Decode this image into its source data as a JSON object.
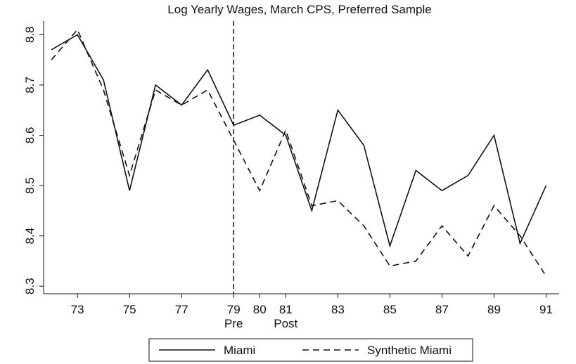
{
  "chart_data": {
    "type": "line",
    "title": "Log Yearly Wages, March CPS, Preferred Sample",
    "x": [
      72,
      73,
      74,
      75,
      76,
      77,
      78,
      79,
      80,
      81,
      82,
      83,
      84,
      85,
      86,
      87,
      88,
      89,
      90,
      91
    ],
    "series": [
      {
        "name": "Miami",
        "color": "#111111",
        "dash": "solid",
        "values": [
          8.77,
          8.8,
          8.71,
          8.49,
          8.7,
          8.66,
          8.73,
          8.62,
          8.64,
          8.6,
          8.45,
          8.65,
          8.58,
          8.38,
          8.53,
          8.49,
          8.52,
          8.6,
          8.385,
          8.5
        ]
      },
      {
        "name": "Synthetic Miami",
        "color": "#111111",
        "dash": "dashed",
        "values": [
          8.75,
          8.81,
          8.69,
          8.52,
          8.69,
          8.66,
          8.69,
          8.59,
          8.49,
          8.61,
          8.46,
          8.47,
          8.42,
          8.34,
          8.35,
          8.42,
          8.36,
          8.46,
          8.4,
          8.32
        ]
      }
    ],
    "xlim": [
      71.7,
      91.5
    ],
    "ylim": [
      8.285,
      8.827
    ],
    "xticks": [
      73,
      75,
      77,
      79,
      80,
      81,
      83,
      85,
      87,
      89,
      91
    ],
    "yticks": [
      8.3,
      8.4,
      8.5,
      8.6,
      8.7,
      8.8
    ],
    "vline": 79,
    "annotations": [
      {
        "text": "Pre",
        "x": 79
      },
      {
        "text": "Post",
        "x": 81
      }
    ],
    "legend": "bottom"
  }
}
